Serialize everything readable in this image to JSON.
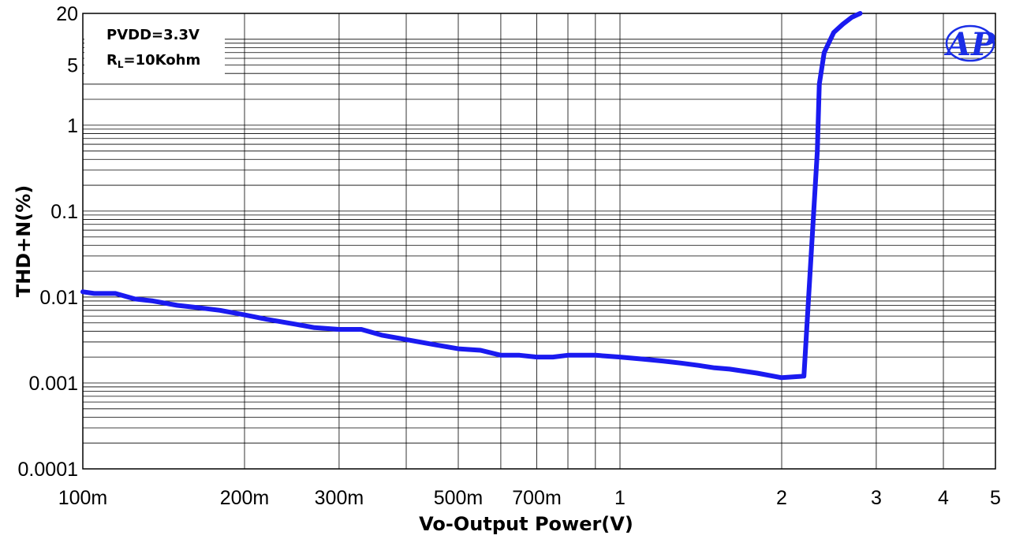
{
  "chart_data": {
    "type": "line",
    "xlabel": "Vo-Output Power(V)",
    "ylabel": "THD+N(%)",
    "x_scale": "log",
    "y_scale": "log",
    "xlim": [
      0.1,
      5
    ],
    "ylim": [
      0.0001,
      20
    ],
    "grid": true,
    "x_ticks": [
      {
        "value": 0.1,
        "label": "100m"
      },
      {
        "value": 0.2,
        "label": "200m"
      },
      {
        "value": 0.3,
        "label": "300m"
      },
      {
        "value": 0.5,
        "label": "500m"
      },
      {
        "value": 0.7,
        "label": "700m"
      },
      {
        "value": 1,
        "label": "1"
      },
      {
        "value": 2,
        "label": "2"
      },
      {
        "value": 3,
        "label": "3"
      },
      {
        "value": 4,
        "label": "4"
      },
      {
        "value": 5,
        "label": "5"
      }
    ],
    "y_ticks": [
      {
        "value": 20,
        "label": "20"
      },
      {
        "value": 5,
        "label": "5"
      },
      {
        "value": 1,
        "label": "1"
      },
      {
        "value": 0.1,
        "label": "0.1"
      },
      {
        "value": 0.01,
        "label": "0.01"
      },
      {
        "value": 0.001,
        "label": "0.001"
      },
      {
        "value": 0.0001,
        "label": "0.0001"
      }
    ],
    "annotations": {
      "line1": "PVDD=3.3V",
      "line2_main": "R",
      "line2_sub": "L",
      "line2_rest": "=10Kohm"
    },
    "logo_text": "AP",
    "series": [
      {
        "color": "#1a1af0",
        "x": [
          0.1,
          0.105,
          0.115,
          0.125,
          0.135,
          0.15,
          0.165,
          0.18,
          0.2,
          0.22,
          0.25,
          0.27,
          0.3,
          0.33,
          0.36,
          0.4,
          0.45,
          0.5,
          0.55,
          0.6,
          0.65,
          0.7,
          0.75,
          0.8,
          0.85,
          0.9,
          1.0,
          1.1,
          1.2,
          1.3,
          1.4,
          1.5,
          1.6,
          1.8,
          2.0,
          2.2,
          2.33,
          2.35,
          2.4,
          2.5,
          2.6,
          2.7,
          2.8
        ],
        "y": [
          0.0115,
          0.011,
          0.011,
          0.0095,
          0.009,
          0.008,
          0.0075,
          0.007,
          0.0062,
          0.0055,
          0.0048,
          0.0044,
          0.0042,
          0.0042,
          0.0036,
          0.0032,
          0.0028,
          0.0025,
          0.0024,
          0.0021,
          0.0021,
          0.002,
          0.002,
          0.0021,
          0.0021,
          0.0021,
          0.002,
          0.0019,
          0.0018,
          0.0017,
          0.0016,
          0.0015,
          0.00145,
          0.0013,
          0.00115,
          0.0012,
          0.5,
          3,
          7,
          12,
          15,
          18,
          20
        ]
      }
    ]
  }
}
